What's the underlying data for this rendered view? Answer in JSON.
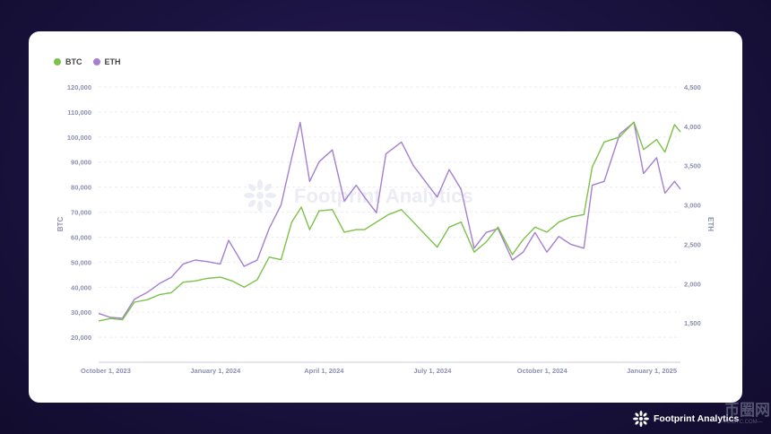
{
  "brand": {
    "name": "Footprint Analytics",
    "watermark": "Footprint Analytics"
  },
  "site_mark": {
    "glyphs": "币圈网",
    "domain": "—ALIBTC.COM—"
  },
  "colors": {
    "btc": "#7cc14a",
    "eth": "#a57fd1",
    "background": "#1a1340"
  },
  "chart_data": {
    "type": "line",
    "legend": [
      "BTC",
      "ETH"
    ],
    "legend_position": "top-left",
    "grid": true,
    "ylabel_left": "BTC",
    "ylabel_right": "ETH",
    "x_range": [
      "2023-09-25",
      "2025-01-25"
    ],
    "x_ticks": [
      {
        "date": "2023-10-01",
        "label": "October 1, 2023"
      },
      {
        "date": "2024-01-01",
        "label": "January 1, 2024"
      },
      {
        "date": "2024-04-01",
        "label": "April 1, 2024"
      },
      {
        "date": "2024-07-01",
        "label": "July 1, 2024"
      },
      {
        "date": "2024-10-01",
        "label": "October 1, 2024"
      },
      {
        "date": "2025-01-01",
        "label": "January 1, 2025"
      }
    ],
    "y_left": {
      "range": [
        10000,
        120000
      ],
      "ticks": [
        20000,
        30000,
        40000,
        50000,
        60000,
        70000,
        80000,
        90000,
        100000,
        110000,
        120000
      ],
      "tick_labels": [
        "20,000",
        "30,000",
        "40,000",
        "50,000",
        "60,000",
        "70,000",
        "80,000",
        "90,000",
        "100,000",
        "110,000",
        "120,000"
      ]
    },
    "y_right": {
      "range": [
        1000,
        4500
      ],
      "ticks": [
        1500,
        2000,
        2500,
        3000,
        3500,
        4000,
        4500
      ],
      "tick_labels": [
        "1,500",
        "2,000",
        "2,500",
        "3,000",
        "3,500",
        "4,000",
        "4,500"
      ]
    },
    "series": [
      {
        "name": "BTC",
        "axis": "left",
        "points": [
          [
            "2023-09-25",
            26500
          ],
          [
            "2023-10-05",
            27500
          ],
          [
            "2023-10-15",
            27000
          ],
          [
            "2023-10-25",
            34000
          ],
          [
            "2023-11-05",
            35000
          ],
          [
            "2023-11-15",
            37000
          ],
          [
            "2023-11-25",
            37800
          ],
          [
            "2023-12-05",
            42000
          ],
          [
            "2023-12-15",
            42500
          ],
          [
            "2023-12-25",
            43500
          ],
          [
            "2024-01-05",
            44000
          ],
          [
            "2024-01-15",
            42500
          ],
          [
            "2024-01-25",
            40000
          ],
          [
            "2024-02-05",
            43000
          ],
          [
            "2024-02-15",
            52000
          ],
          [
            "2024-02-25",
            51000
          ],
          [
            "2024-03-05",
            66000
          ],
          [
            "2024-03-13",
            72000
          ],
          [
            "2024-03-20",
            63000
          ],
          [
            "2024-03-28",
            70500
          ],
          [
            "2024-04-08",
            71000
          ],
          [
            "2024-04-18",
            62000
          ],
          [
            "2024-04-28",
            63000
          ],
          [
            "2024-05-05",
            63000
          ],
          [
            "2024-05-15",
            66000
          ],
          [
            "2024-05-25",
            69000
          ],
          [
            "2024-06-05",
            71000
          ],
          [
            "2024-06-15",
            66000
          ],
          [
            "2024-06-25",
            61000
          ],
          [
            "2024-07-05",
            56000
          ],
          [
            "2024-07-15",
            64000
          ],
          [
            "2024-07-25",
            66000
          ],
          [
            "2024-08-05",
            54000
          ],
          [
            "2024-08-15",
            58000
          ],
          [
            "2024-08-25",
            64000
          ],
          [
            "2024-09-06",
            53000
          ],
          [
            "2024-09-15",
            59000
          ],
          [
            "2024-09-25",
            64000
          ],
          [
            "2024-10-05",
            62000
          ],
          [
            "2024-10-15",
            66000
          ],
          [
            "2024-10-25",
            68000
          ],
          [
            "2024-11-05",
            69000
          ],
          [
            "2024-11-12",
            88000
          ],
          [
            "2024-11-22",
            98000
          ],
          [
            "2024-12-05",
            100000
          ],
          [
            "2024-12-17",
            106000
          ],
          [
            "2024-12-25",
            95000
          ],
          [
            "2025-01-05",
            99000
          ],
          [
            "2025-01-12",
            94000
          ],
          [
            "2025-01-20",
            105000
          ],
          [
            "2025-01-25",
            102000
          ]
        ]
      },
      {
        "name": "ETH",
        "axis": "right",
        "points": [
          [
            "2023-09-25",
            1620
          ],
          [
            "2023-10-05",
            1570
          ],
          [
            "2023-10-15",
            1560
          ],
          [
            "2023-10-25",
            1800
          ],
          [
            "2023-11-05",
            1890
          ],
          [
            "2023-11-15",
            2000
          ],
          [
            "2023-11-25",
            2080
          ],
          [
            "2023-12-05",
            2250
          ],
          [
            "2023-12-15",
            2300
          ],
          [
            "2023-12-25",
            2280
          ],
          [
            "2024-01-05",
            2250
          ],
          [
            "2024-01-12",
            2550
          ],
          [
            "2024-01-25",
            2220
          ],
          [
            "2024-02-05",
            2300
          ],
          [
            "2024-02-15",
            2700
          ],
          [
            "2024-02-25",
            3000
          ],
          [
            "2024-03-05",
            3600
          ],
          [
            "2024-03-12",
            4050
          ],
          [
            "2024-03-20",
            3300
          ],
          [
            "2024-03-28",
            3550
          ],
          [
            "2024-04-08",
            3700
          ],
          [
            "2024-04-18",
            3050
          ],
          [
            "2024-04-28",
            3250
          ],
          [
            "2024-05-05",
            3100
          ],
          [
            "2024-05-15",
            2900
          ],
          [
            "2024-05-23",
            3650
          ],
          [
            "2024-06-05",
            3800
          ],
          [
            "2024-06-15",
            3500
          ],
          [
            "2024-06-25",
            3300
          ],
          [
            "2024-07-05",
            3100
          ],
          [
            "2024-07-15",
            3450
          ],
          [
            "2024-07-25",
            3200
          ],
          [
            "2024-08-05",
            2450
          ],
          [
            "2024-08-15",
            2650
          ],
          [
            "2024-08-25",
            2700
          ],
          [
            "2024-09-06",
            2300
          ],
          [
            "2024-09-15",
            2400
          ],
          [
            "2024-09-25",
            2650
          ],
          [
            "2024-10-05",
            2400
          ],
          [
            "2024-10-15",
            2600
          ],
          [
            "2024-10-25",
            2500
          ],
          [
            "2024-11-05",
            2450
          ],
          [
            "2024-11-12",
            3250
          ],
          [
            "2024-11-22",
            3300
          ],
          [
            "2024-12-05",
            3900
          ],
          [
            "2024-12-17",
            4050
          ],
          [
            "2024-12-25",
            3400
          ],
          [
            "2025-01-05",
            3600
          ],
          [
            "2025-01-12",
            3150
          ],
          [
            "2025-01-20",
            3300
          ],
          [
            "2025-01-25",
            3200
          ]
        ]
      }
    ]
  }
}
